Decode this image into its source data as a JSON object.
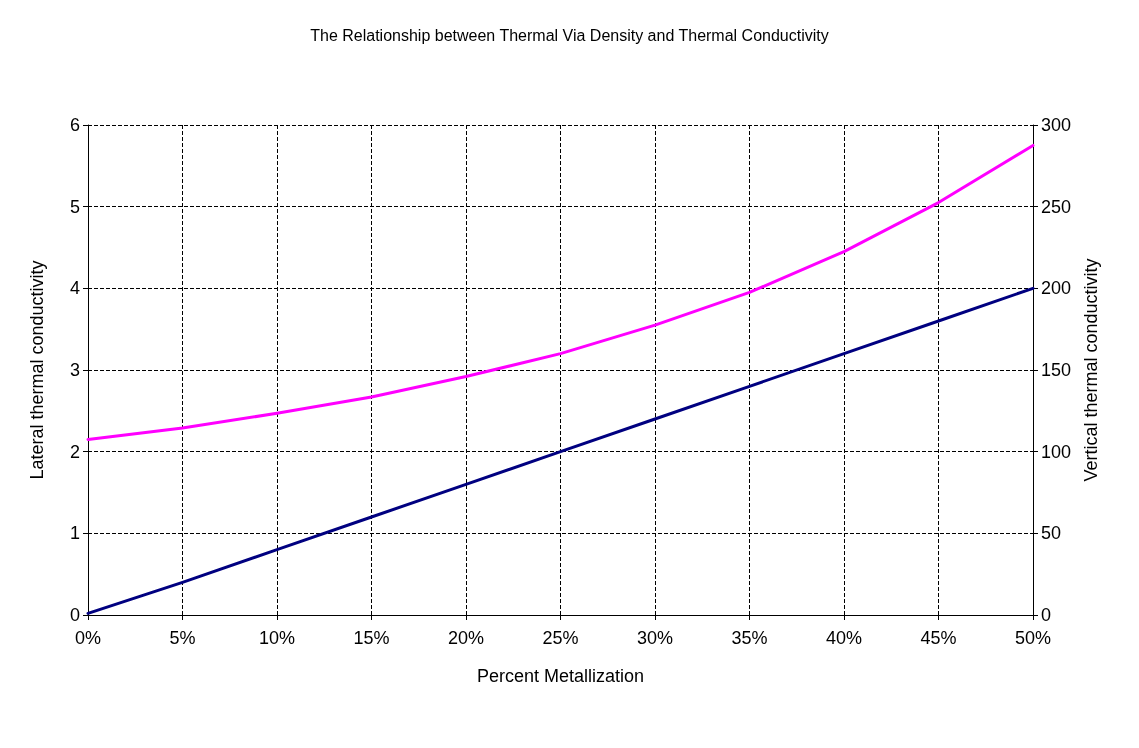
{
  "chart_data": {
    "type": "line",
    "title": "The Relationship between Thermal Via Density and Thermal Conductivity",
    "xlabel": "Percent Metallization",
    "ylabel": "Lateral thermal conductivity",
    "y2label": "Vertical thermal conductivity",
    "x": [
      0,
      5,
      10,
      15,
      20,
      25,
      30,
      35,
      40,
      45,
      50
    ],
    "series": [
      {
        "color": "#ff00ff",
        "values": [
          2.15,
          2.29,
          2.47,
          2.67,
          2.92,
          3.2,
          3.55,
          3.95,
          4.45,
          5.05,
          5.75
        ]
      },
      {
        "color": "#000080",
        "axis": "y2",
        "values": [
          1,
          20,
          40,
          60,
          80,
          100,
          120,
          140,
          160,
          180,
          200
        ]
      }
    ],
    "xlim": [
      0,
      50
    ],
    "xticks": [
      {
        "value": 0,
        "label": "0%"
      },
      {
        "value": 5,
        "label": "5%"
      },
      {
        "value": 10,
        "label": "10%"
      },
      {
        "value": 15,
        "label": "15%"
      },
      {
        "value": 20,
        "label": "20%"
      },
      {
        "value": 25,
        "label": "25%"
      },
      {
        "value": 30,
        "label": "30%"
      },
      {
        "value": 35,
        "label": "35%"
      },
      {
        "value": 40,
        "label": "40%"
      },
      {
        "value": 45,
        "label": "45%"
      },
      {
        "value": 50,
        "label": "50%"
      }
    ],
    "ylim": [
      0,
      6
    ],
    "yticks": [
      0,
      1,
      2,
      3,
      4,
      5,
      6
    ],
    "y2lim": [
      0,
      300
    ],
    "y2ticks": [
      0,
      50,
      100,
      150,
      200,
      250,
      300
    ],
    "grid": true,
    "marker": "none",
    "line_style": "solid"
  }
}
